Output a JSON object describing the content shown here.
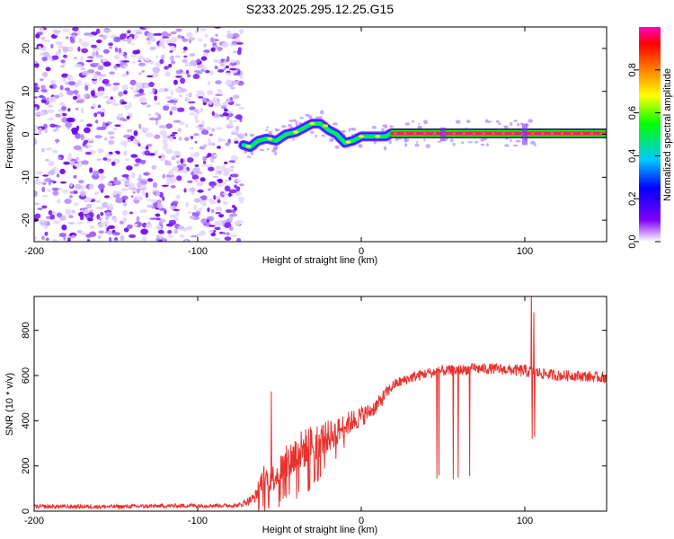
{
  "figure": {
    "title": "S233.2025.295.12.25.G15"
  },
  "chart_data": [
    {
      "type": "heatmap",
      "name": "spectrogram",
      "xlabel": "Height of straight line (km)",
      "ylabel": "Frequency (Hz)",
      "xlim": [
        -200,
        150
      ],
      "ylim": [
        -25,
        25
      ],
      "xticks": [
        -200,
        -100,
        0,
        100
      ],
      "yticks": [
        -20,
        -10,
        0,
        10,
        20
      ],
      "noise_region_x": [
        -200,
        -73
      ],
      "ridge": {
        "x": [
          -72,
          -68,
          -63,
          -58,
          -52,
          -46,
          -40,
          -35,
          -30,
          -25,
          -20,
          -15,
          -10,
          -5,
          0,
          5,
          10,
          15,
          18,
          150
        ],
        "freq": [
          -2.5,
          -3.0,
          -1.5,
          -1.0,
          -1.5,
          0.0,
          0.5,
          1.5,
          2.5,
          2.5,
          1.0,
          0.0,
          -2.0,
          -1.5,
          -0.5,
          -0.5,
          -0.5,
          -0.5,
          0.2,
          0.2
        ]
      },
      "colorbar": {
        "label": "Normalized spectral amplitude",
        "range": [
          0.0,
          1.0
        ],
        "ticks": [
          0.0,
          0.2,
          0.4,
          0.6,
          0.8
        ],
        "tick_labels": [
          "0.0",
          "0.2",
          "0.4",
          "0.6",
          "0.8"
        ],
        "colors": [
          "#ffffff",
          "#7f00ff",
          "#0000ff",
          "#00c8ff",
          "#00ff00",
          "#ffff00",
          "#ff8000",
          "#ff0000",
          "#ff00c0"
        ]
      }
    },
    {
      "type": "line",
      "name": "snr",
      "xlabel": "Height of straight line (km)",
      "ylabel": "SNR (10 * v/v)",
      "xlim": [
        -200,
        150
      ],
      "ylim": [
        0,
        950
      ],
      "xticks": [
        -200,
        -100,
        0,
        100
      ],
      "yticks": [
        0,
        200,
        400,
        600,
        800
      ],
      "color": "#e8322e",
      "envelope": {
        "x": [
          -200,
          -150,
          -100,
          -75,
          -65,
          -60,
          -55,
          -50,
          -40,
          -30,
          -20,
          -15,
          -10,
          0,
          5,
          10,
          15,
          20,
          30,
          40,
          50,
          60,
          70,
          80,
          90,
          100,
          110,
          120,
          130,
          140,
          150
        ],
        "mean": [
          20,
          20,
          25,
          25,
          60,
          150,
          140,
          180,
          250,
          300,
          330,
          350,
          380,
          420,
          440,
          470,
          520,
          560,
          590,
          610,
          620,
          625,
          630,
          630,
          625,
          620,
          610,
          600,
          600,
          595,
          590
        ],
        "spread": [
          15,
          15,
          15,
          15,
          40,
          100,
          100,
          120,
          160,
          140,
          120,
          100,
          90,
          80,
          60,
          60,
          50,
          40,
          40,
          40,
          40,
          40,
          40,
          40,
          40,
          50,
          40,
          40,
          40,
          40,
          40
        ]
      },
      "dropouts_x": [
        [
          43,
          70
        ],
        [
          -65,
          -5
        ]
      ],
      "spikes": [
        {
          "x": -55.0,
          "y": 530
        },
        {
          "x": 104.0,
          "y": 1000
        },
        {
          "x": 104.5,
          "y": 320
        },
        {
          "x": 105.5,
          "y": 880
        },
        {
          "x": 106.0,
          "y": 330
        }
      ]
    }
  ]
}
